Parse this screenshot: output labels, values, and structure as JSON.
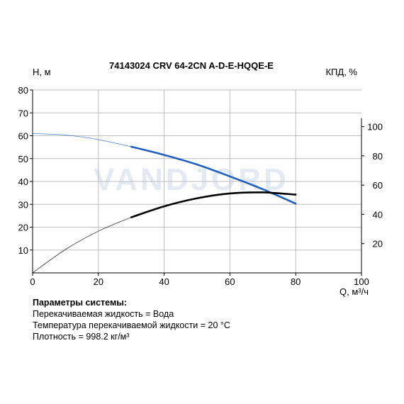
{
  "chart_data": {
    "type": "line",
    "title": "74143024 CRV 64-2CN A-D-E-HQQE-E",
    "xlabel": "Q, м³/ч",
    "ylabel": "H, м",
    "y2label": "КПД, %",
    "watermark": "VANDJORD",
    "xlim": [
      0,
      100
    ],
    "ylim": [
      0,
      80
    ],
    "y2lim": [
      0,
      125
    ],
    "xticks": [
      0,
      20,
      40,
      60,
      80,
      100
    ],
    "yticks": [
      10,
      20,
      30,
      40,
      50,
      60,
      70,
      80
    ],
    "y2ticks": [
      20,
      40,
      60,
      80,
      100
    ],
    "grid": true,
    "series": [
      {
        "axis": "left",
        "color": "#1f5fbf",
        "operating_range": [
          30,
          80
        ],
        "x": [
          0,
          10,
          20,
          30,
          40,
          50,
          60,
          70,
          80
        ],
        "y": [
          61,
          60.3,
          58.3,
          55.2,
          51.6,
          47.4,
          42.2,
          36.6,
          30.3
        ]
      },
      {
        "axis": "right",
        "color": "#000000",
        "operating_range": [
          30,
          80
        ],
        "x": [
          0,
          10,
          20,
          30,
          40,
          50,
          60,
          70,
          80
        ],
        "y": [
          0,
          16,
          28.5,
          38,
          45.5,
          51,
          54.3,
          55,
          53.5
        ]
      }
    ]
  },
  "system_params": {
    "title": "Параметры системы:",
    "lines": [
      "Перекачиваемая жидкость = Вода",
      "Температура перекачиваемой жидкости = 20 °C",
      "Плотность = 998.2 кг/м³"
    ]
  }
}
